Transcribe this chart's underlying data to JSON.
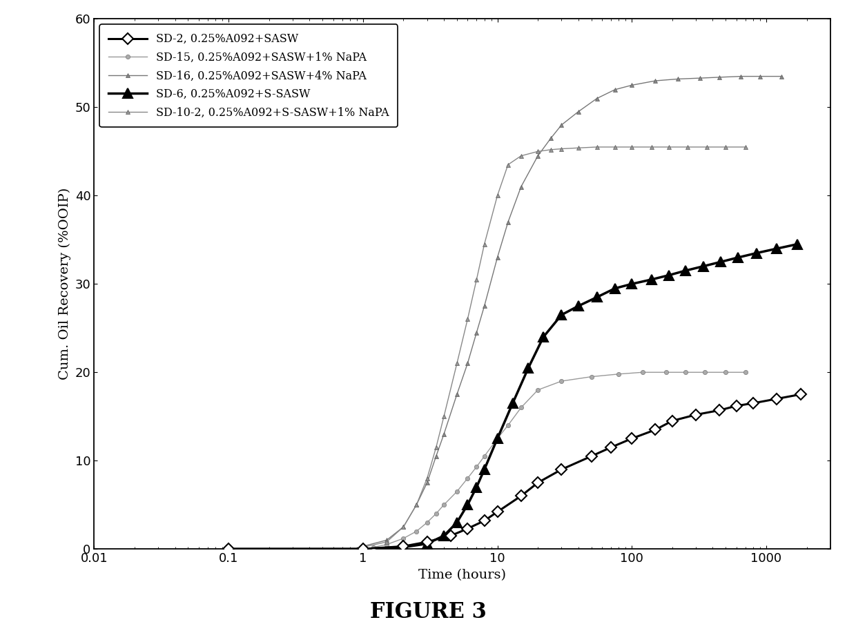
{
  "xlabel": "Time (hours)",
  "ylabel": "Cum. Oil Recovery (%OOIP)",
  "xlim": [
    0.01,
    3000
  ],
  "ylim": [
    0,
    60
  ],
  "yticks": [
    0,
    10,
    20,
    30,
    40,
    50,
    60
  ],
  "series": [
    {
      "label": "SD-2, 0.25%A092+SASW",
      "x": [
        0.1,
        1.0,
        2.0,
        3.0,
        4.5,
        6.0,
        8.0,
        10.0,
        15.0,
        20.0,
        30.0,
        50.0,
        70.0,
        100.0,
        150.0,
        200.0,
        300.0,
        450.0,
        600.0,
        800.0,
        1200.0,
        1800.0
      ],
      "y": [
        0.0,
        0.0,
        0.3,
        0.8,
        1.5,
        2.3,
        3.2,
        4.2,
        6.0,
        7.5,
        9.0,
        10.5,
        11.5,
        12.5,
        13.5,
        14.5,
        15.2,
        15.7,
        16.2,
        16.5,
        17.0,
        17.5
      ]
    },
    {
      "label": "SD-15, 0.25%A092+SASW+1% NaPA",
      "x": [
        1.2,
        1.5,
        2.0,
        2.5,
        3.0,
        3.5,
        4.0,
        5.0,
        6.0,
        7.0,
        8.0,
        10.0,
        12.0,
        15.0,
        20.0,
        30.0,
        50.0,
        80.0,
        120.0,
        180.0,
        250.0,
        350.0,
        500.0,
        700.0
      ],
      "y": [
        0.2,
        0.5,
        1.2,
        2.0,
        3.0,
        4.0,
        5.0,
        6.5,
        8.0,
        9.3,
        10.5,
        12.5,
        14.0,
        16.0,
        18.0,
        19.0,
        19.5,
        19.8,
        20.0,
        20.0,
        20.0,
        20.0,
        20.0,
        20.0
      ]
    },
    {
      "label": "SD-16, 0.25%A092+SASW+4% NaPA",
      "x": [
        1.0,
        1.5,
        2.0,
        2.5,
        3.0,
        3.5,
        4.0,
        5.0,
        6.0,
        7.0,
        8.0,
        10.0,
        12.0,
        15.0,
        20.0,
        25.0,
        30.0,
        40.0,
        55.0,
        75.0,
        100.0,
        150.0,
        220.0,
        320.0,
        450.0,
        650.0,
        900.0,
        1300.0
      ],
      "y": [
        0.3,
        1.0,
        2.5,
        5.0,
        7.5,
        10.5,
        13.0,
        17.5,
        21.0,
        24.5,
        27.5,
        33.0,
        37.0,
        41.0,
        44.5,
        46.5,
        48.0,
        49.5,
        51.0,
        52.0,
        52.5,
        53.0,
        53.2,
        53.3,
        53.4,
        53.5,
        53.5,
        53.5
      ]
    },
    {
      "label": "SD-6, 0.25%A092+S-SASW",
      "x": [
        0.1,
        1.0,
        2.0,
        3.0,
        4.0,
        5.0,
        6.0,
        7.0,
        8.0,
        10.0,
        13.0,
        17.0,
        22.0,
        30.0,
        40.0,
        55.0,
        75.0,
        100.0,
        140.0,
        190.0,
        250.0,
        340.0,
        460.0,
        620.0,
        850.0,
        1200.0,
        1700.0
      ],
      "y": [
        0.0,
        0.0,
        0.2,
        0.6,
        1.5,
        3.0,
        5.0,
        7.0,
        9.0,
        12.5,
        16.5,
        20.5,
        24.0,
        26.5,
        27.5,
        28.5,
        29.5,
        30.0,
        30.5,
        31.0,
        31.5,
        32.0,
        32.5,
        33.0,
        33.5,
        34.0,
        34.5
      ]
    },
    {
      "label": "SD-10-2, 0.25%A092+S-SASW+1% NaPA",
      "x": [
        1.0,
        1.5,
        2.0,
        2.5,
        3.0,
        3.5,
        4.0,
        5.0,
        6.0,
        7.0,
        8.0,
        10.0,
        12.0,
        15.0,
        20.0,
        25.0,
        30.0,
        40.0,
        55.0,
        75.0,
        100.0,
        140.0,
        190.0,
        260.0,
        360.0,
        500.0,
        700.0
      ],
      "y": [
        0.2,
        0.8,
        2.5,
        5.0,
        8.0,
        11.5,
        15.0,
        21.0,
        26.0,
        30.5,
        34.5,
        40.0,
        43.5,
        44.5,
        45.0,
        45.2,
        45.3,
        45.4,
        45.5,
        45.5,
        45.5,
        45.5,
        45.5,
        45.5,
        45.5,
        45.5,
        45.5
      ]
    }
  ],
  "background_color": "#ffffff",
  "figure_label": "FIGURE 3",
  "figure_label_fontsize": 22,
  "figure_label_fontweight": "bold"
}
